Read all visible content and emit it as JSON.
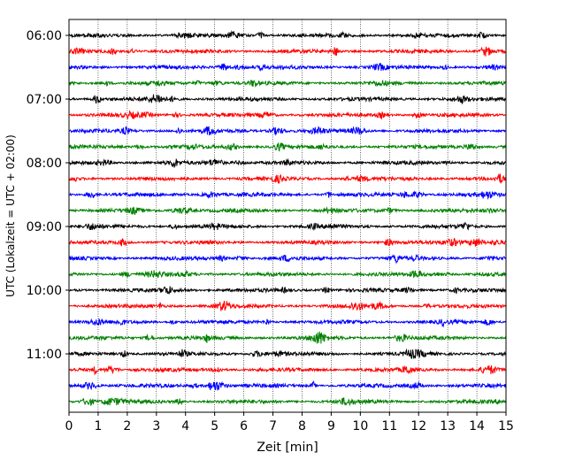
{
  "chart_data": {
    "type": "line",
    "title": "",
    "xlabel": "Zeit  [min]",
    "ylabel": "UTC (Lokalzeit = UTC + 02:00)",
    "xlim": [
      0,
      15
    ],
    "x_ticks": [
      "0",
      "1",
      "2",
      "3",
      "4",
      "5",
      "6",
      "7",
      "8",
      "9",
      "10",
      "11",
      "12",
      "13",
      "14",
      "15"
    ],
    "y_tick_labels": [
      "06:00",
      "07:00",
      "08:00",
      "09:00",
      "10:00",
      "11:00"
    ],
    "grid": "vertical dotted",
    "colors": [
      "#000000",
      "#ff0000",
      "#0000ff",
      "#008000"
    ],
    "traces": [
      {
        "start": "06:00",
        "color": "#000000"
      },
      {
        "start": "06:15",
        "color": "#ff0000"
      },
      {
        "start": "06:30",
        "color": "#0000ff"
      },
      {
        "start": "06:45",
        "color": "#008000"
      },
      {
        "start": "07:00",
        "color": "#000000"
      },
      {
        "start": "07:15",
        "color": "#ff0000"
      },
      {
        "start": "07:30",
        "color": "#0000ff"
      },
      {
        "start": "07:45",
        "color": "#008000"
      },
      {
        "start": "08:00",
        "color": "#000000"
      },
      {
        "start": "08:15",
        "color": "#ff0000"
      },
      {
        "start": "08:30",
        "color": "#0000ff"
      },
      {
        "start": "08:45",
        "color": "#008000"
      },
      {
        "start": "09:00",
        "color": "#000000"
      },
      {
        "start": "09:15",
        "color": "#ff0000"
      },
      {
        "start": "09:30",
        "color": "#0000ff"
      },
      {
        "start": "09:45",
        "color": "#008000"
      },
      {
        "start": "10:00",
        "color": "#000000"
      },
      {
        "start": "10:15",
        "color": "#ff0000"
      },
      {
        "start": "10:30",
        "color": "#0000ff"
      },
      {
        "start": "10:45",
        "color": "#008000"
      },
      {
        "start": "11:00",
        "color": "#000000"
      },
      {
        "start": "11:15",
        "color": "#ff0000"
      },
      {
        "start": "11:30",
        "color": "#0000ff"
      },
      {
        "start": "11:45",
        "color": "#008000"
      }
    ]
  }
}
